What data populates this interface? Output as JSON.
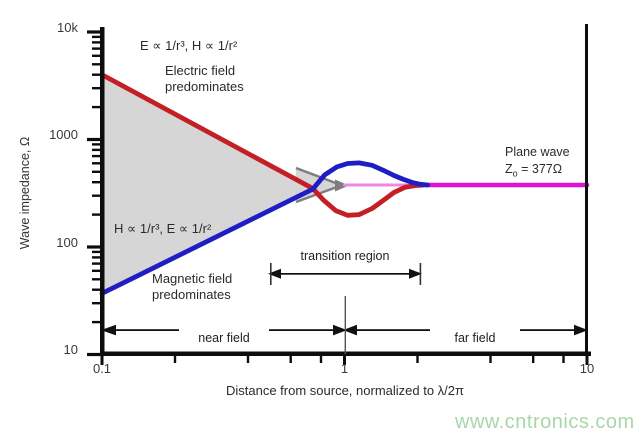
{
  "watermark": "www.cntronics.com",
  "labels": {
    "e_formula": "E ∝ 1/r³, H ∝ 1/r²",
    "electric_line1": "Electric field",
    "electric_line2": "predominates",
    "h_formula": "H ∝ 1/r³, E ∝ 1/r²",
    "magnetic_line1": "Magnetic field",
    "magnetic_line2": "predominates",
    "plane_wave_line1": "Plane wave",
    "plane_wave_z": "Z",
    "plane_wave_sub": "o",
    "plane_wave_value": " = 377Ω",
    "transition_region": "transition region",
    "near_field": "near field",
    "far_field": "far field"
  },
  "chart_data": {
    "type": "line",
    "x_axis": {
      "label": "Distance from source, normalized to λ/2π",
      "scale": "log",
      "range": [
        0.1,
        10
      ],
      "tick_labels": [
        "0.1",
        "1",
        "10"
      ],
      "tick_values": [
        0.1,
        1,
        10
      ],
      "minor_ticks": [
        0.2,
        0.4,
        0.6,
        0.8,
        2,
        4,
        6,
        8
      ]
    },
    "y_axis": {
      "label": "Wave impedance, Ω",
      "scale": "log",
      "range": [
        10,
        10000
      ],
      "tick_labels": [
        "10k",
        "1000",
        "100",
        "10"
      ],
      "tick_values": [
        10000,
        1000,
        100,
        10
      ]
    },
    "reference_impedance_ohms": 377,
    "series": [
      {
        "name": "electric-field-impedance",
        "color": "#c41f25",
        "points": [
          [
            0.1,
            4000
          ],
          [
            0.74,
            350
          ],
          [
            0.82,
            272
          ],
          [
            0.92,
            218
          ],
          [
            1.03,
            197
          ],
          [
            1.15,
            200
          ],
          [
            1.3,
            228
          ],
          [
            1.45,
            272
          ],
          [
            1.6,
            322
          ],
          [
            1.78,
            360
          ],
          [
            1.95,
            372
          ],
          [
            2.1,
            376
          ]
        ]
      },
      {
        "name": "magnetic-field-impedance",
        "color": "#1e1ec4",
        "points": [
          [
            0.1,
            37
          ],
          [
            0.74,
            345
          ],
          [
            0.83,
            470
          ],
          [
            0.93,
            555
          ],
          [
            1.03,
            598
          ],
          [
            1.15,
            605
          ],
          [
            1.3,
            575
          ],
          [
            1.45,
            515
          ],
          [
            1.6,
            462
          ],
          [
            1.75,
            425
          ],
          [
            1.9,
            399
          ],
          [
            2.05,
            383
          ],
          [
            2.2,
            377
          ]
        ]
      },
      {
        "name": "plane-wave",
        "color": "#dc14d2",
        "underlay_color": "#ef86e8",
        "bright_from": 2.12,
        "points": [
          [
            1.0,
            377
          ],
          [
            10,
            377
          ]
        ]
      }
    ],
    "regions": [
      {
        "name": "near-field-shaded-region",
        "color": "#d6d6d6",
        "points": [
          [
            0.1,
            4000
          ],
          [
            0.74,
            348
          ],
          [
            0.1,
            37
          ]
        ]
      },
      {
        "name": "ideal-convergence-wedge",
        "color": "#d6d6d6",
        "points": [
          [
            0.63,
            545
          ],
          [
            0.97,
            382
          ],
          [
            0.63,
            262
          ]
        ]
      }
    ]
  }
}
